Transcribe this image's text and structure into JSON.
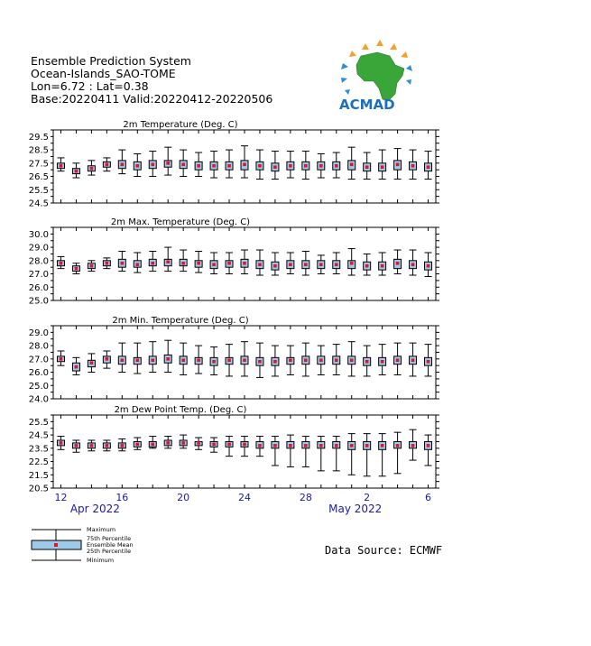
{
  "header": {
    "line1": "Ensemble Prediction System",
    "line2": "Ocean-Islands_SAO-TOME",
    "line3": "Lon=6.72 : Lat=0.38",
    "line4": "Base:20220411 Valid:20220412-20220506"
  },
  "logo": {
    "text": "ACMAD"
  },
  "source": "Data Source: ECMWF",
  "legend": {
    "maximum": "Maximum",
    "p75": "75th Percentile",
    "mean": "Ensemble Mean",
    "p25": "25th Percentile",
    "minimum": "Minimum"
  },
  "colors": {
    "box_fill": "#9ec9e8",
    "mean_marker": "#e8102a",
    "axis_text": "#1a1aa8"
  },
  "chart_data": [
    {
      "type": "box",
      "title": "2m Temperature (Deg. C)",
      "x": [
        "2022-04-12",
        "2022-04-13",
        "2022-04-14",
        "2022-04-15",
        "2022-04-16",
        "2022-04-17",
        "2022-04-18",
        "2022-04-19",
        "2022-04-20",
        "2022-04-21",
        "2022-04-22",
        "2022-04-23",
        "2022-04-24",
        "2022-04-25",
        "2022-04-26",
        "2022-04-27",
        "2022-04-28",
        "2022-04-29",
        "2022-04-30",
        "2022-05-01",
        "2022-05-02",
        "2022-05-03",
        "2022-05-04",
        "2022-05-05",
        "2022-05-06"
      ],
      "ylim": [
        24.5,
        30.0
      ],
      "yticks": [
        "29.5",
        "28.5",
        "27.5",
        "26.5",
        "25.5",
        "24.5"
      ],
      "min": [
        26.9,
        26.4,
        26.6,
        26.9,
        26.7,
        26.5,
        26.5,
        26.6,
        26.5,
        26.5,
        26.4,
        26.4,
        26.4,
        26.3,
        26.3,
        26.4,
        26.3,
        26.4,
        26.4,
        26.3,
        26.3,
        26.3,
        26.3,
        26.3,
        26.3
      ],
      "p25": [
        27.1,
        26.7,
        26.9,
        27.2,
        27.1,
        27.0,
        27.1,
        27.2,
        27.1,
        27.0,
        27.0,
        27.0,
        27.0,
        27.0,
        26.9,
        27.0,
        27.0,
        27.0,
        27.0,
        27.0,
        26.9,
        26.9,
        27.0,
        27.0,
        26.9
      ],
      "mean": [
        27.3,
        26.9,
        27.1,
        27.4,
        27.4,
        27.3,
        27.4,
        27.5,
        27.4,
        27.3,
        27.3,
        27.3,
        27.4,
        27.3,
        27.2,
        27.3,
        27.3,
        27.3,
        27.3,
        27.4,
        27.2,
        27.2,
        27.4,
        27.3,
        27.2
      ],
      "p75": [
        27.5,
        27.1,
        27.3,
        27.6,
        27.7,
        27.6,
        27.7,
        27.7,
        27.7,
        27.6,
        27.6,
        27.6,
        27.7,
        27.6,
        27.5,
        27.6,
        27.6,
        27.6,
        27.6,
        27.7,
        27.5,
        27.5,
        27.7,
        27.6,
        27.5
      ],
      "max": [
        27.9,
        27.5,
        27.7,
        27.9,
        28.5,
        28.2,
        28.4,
        28.7,
        28.5,
        28.3,
        28.4,
        28.5,
        28.8,
        28.5,
        28.4,
        28.4,
        28.4,
        28.2,
        28.3,
        28.7,
        28.3,
        28.5,
        28.6,
        28.5,
        28.4
      ]
    },
    {
      "type": "box",
      "title": "2m Max. Temperature (Deg. C)",
      "x": [
        "2022-04-12",
        "2022-04-13",
        "2022-04-14",
        "2022-04-15",
        "2022-04-16",
        "2022-04-17",
        "2022-04-18",
        "2022-04-19",
        "2022-04-20",
        "2022-04-21",
        "2022-04-22",
        "2022-04-23",
        "2022-04-24",
        "2022-04-25",
        "2022-04-26",
        "2022-04-27",
        "2022-04-28",
        "2022-04-29",
        "2022-04-30",
        "2022-05-01",
        "2022-05-02",
        "2022-05-03",
        "2022-05-04",
        "2022-05-05",
        "2022-05-06"
      ],
      "ylim": [
        25.0,
        30.5
      ],
      "yticks": [
        "30.0",
        "29.0",
        "28.0",
        "27.0",
        "26.0",
        "25.0"
      ],
      "min": [
        27.4,
        27.0,
        27.2,
        27.4,
        27.2,
        27.1,
        27.2,
        27.2,
        27.2,
        27.1,
        27.0,
        27.0,
        27.0,
        26.9,
        26.9,
        27.0,
        26.9,
        27.0,
        27.0,
        26.9,
        26.9,
        26.9,
        27.0,
        26.9,
        26.8
      ],
      "p25": [
        27.6,
        27.2,
        27.4,
        27.6,
        27.5,
        27.5,
        27.6,
        27.6,
        27.6,
        27.5,
        27.4,
        27.5,
        27.5,
        27.4,
        27.3,
        27.4,
        27.4,
        27.4,
        27.4,
        27.4,
        27.3,
        27.3,
        27.4,
        27.4,
        27.3
      ],
      "mean": [
        27.8,
        27.4,
        27.6,
        27.8,
        27.8,
        27.7,
        27.8,
        27.9,
        27.8,
        27.8,
        27.7,
        27.8,
        27.8,
        27.7,
        27.6,
        27.7,
        27.7,
        27.7,
        27.7,
        27.8,
        27.6,
        27.6,
        27.8,
        27.7,
        27.6
      ],
      "p75": [
        28.0,
        27.6,
        27.8,
        28.0,
        28.1,
        28.0,
        28.1,
        28.1,
        28.1,
        28.0,
        28.0,
        28.0,
        28.1,
        28.0,
        27.9,
        28.0,
        28.0,
        28.0,
        28.0,
        28.0,
        27.9,
        27.9,
        28.1,
        28.0,
        27.9
      ],
      "max": [
        28.3,
        27.8,
        28.0,
        28.2,
        28.7,
        28.6,
        28.7,
        29.0,
        28.8,
        28.7,
        28.6,
        28.6,
        28.8,
        28.8,
        28.6,
        28.6,
        28.7,
        28.4,
        28.6,
        28.9,
        28.5,
        28.6,
        28.8,
        28.8,
        28.6
      ]
    },
    {
      "type": "box",
      "title": "2m Min. Temperature (Deg. C)",
      "x": [
        "2022-04-12",
        "2022-04-13",
        "2022-04-14",
        "2022-04-15",
        "2022-04-16",
        "2022-04-17",
        "2022-04-18",
        "2022-04-19",
        "2022-04-20",
        "2022-04-21",
        "2022-04-22",
        "2022-04-23",
        "2022-04-24",
        "2022-04-25",
        "2022-04-26",
        "2022-04-27",
        "2022-04-28",
        "2022-04-29",
        "2022-04-30",
        "2022-05-01",
        "2022-05-02",
        "2022-05-03",
        "2022-05-04",
        "2022-05-05",
        "2022-05-06"
      ],
      "ylim": [
        24.0,
        29.5
      ],
      "yticks": [
        "29.0",
        "28.0",
        "27.0",
        "26.0",
        "25.0",
        "24.0"
      ],
      "min": [
        26.5,
        25.8,
        26.0,
        26.3,
        26.0,
        25.9,
        26.0,
        26.0,
        25.8,
        25.9,
        25.8,
        25.7,
        25.7,
        25.6,
        25.7,
        25.8,
        25.7,
        25.8,
        25.8,
        25.7,
        25.7,
        25.8,
        25.8,
        25.7,
        25.7
      ],
      "p25": [
        26.8,
        26.1,
        26.4,
        26.7,
        26.6,
        26.6,
        26.6,
        26.7,
        26.6,
        26.6,
        26.5,
        26.6,
        26.6,
        26.5,
        26.5,
        26.6,
        26.6,
        26.6,
        26.6,
        26.6,
        26.5,
        26.5,
        26.6,
        26.6,
        26.5
      ],
      "mean": [
        27.0,
        26.4,
        26.7,
        27.0,
        26.9,
        26.9,
        26.9,
        27.0,
        26.9,
        26.9,
        26.8,
        26.9,
        26.9,
        26.8,
        26.8,
        26.9,
        26.9,
        26.9,
        26.9,
        26.9,
        26.8,
        26.8,
        26.9,
        26.9,
        26.8
      ],
      "p75": [
        27.2,
        26.7,
        26.9,
        27.2,
        27.2,
        27.1,
        27.2,
        27.3,
        27.2,
        27.1,
        27.1,
        27.1,
        27.2,
        27.1,
        27.1,
        27.1,
        27.2,
        27.2,
        27.2,
        27.2,
        27.1,
        27.1,
        27.2,
        27.2,
        27.1
      ],
      "max": [
        27.6,
        27.1,
        27.4,
        27.6,
        28.2,
        28.2,
        28.3,
        28.4,
        28.2,
        28.0,
        27.9,
        28.1,
        28.3,
        28.2,
        28.0,
        28.0,
        28.2,
        28.0,
        28.1,
        28.3,
        28.0,
        28.1,
        28.2,
        28.2,
        28.1
      ]
    },
    {
      "type": "box",
      "title": "2m Dew Point Temp. (Deg. C)",
      "x": [
        "2022-04-12",
        "2022-04-13",
        "2022-04-14",
        "2022-04-15",
        "2022-04-16",
        "2022-04-17",
        "2022-04-18",
        "2022-04-19",
        "2022-04-20",
        "2022-04-21",
        "2022-04-22",
        "2022-04-23",
        "2022-04-24",
        "2022-04-25",
        "2022-04-26",
        "2022-04-27",
        "2022-04-28",
        "2022-04-29",
        "2022-04-30",
        "2022-05-01",
        "2022-05-02",
        "2022-05-03",
        "2022-05-04",
        "2022-05-05",
        "2022-05-06"
      ],
      "ylim": [
        20.5,
        26.0
      ],
      "yticks": [
        "25.5",
        "24.5",
        "23.5",
        "22.5",
        "21.5",
        "20.5"
      ],
      "min": [
        23.4,
        23.2,
        23.3,
        23.3,
        23.3,
        23.4,
        23.5,
        23.5,
        23.5,
        23.4,
        23.2,
        22.9,
        22.9,
        22.9,
        22.2,
        22.1,
        22.1,
        21.8,
        21.8,
        21.5,
        21.4,
        21.4,
        21.6,
        22.6,
        22.2
      ],
      "p25": [
        23.7,
        23.5,
        23.5,
        23.5,
        23.5,
        23.6,
        23.6,
        23.7,
        23.7,
        23.7,
        23.6,
        23.6,
        23.6,
        23.5,
        23.5,
        23.5,
        23.5,
        23.5,
        23.5,
        23.4,
        23.4,
        23.4,
        23.5,
        23.5,
        23.4
      ],
      "mean": [
        23.9,
        23.7,
        23.7,
        23.7,
        23.7,
        23.8,
        23.8,
        23.9,
        23.9,
        23.9,
        23.8,
        23.8,
        23.8,
        23.7,
        23.7,
        23.7,
        23.7,
        23.7,
        23.7,
        23.7,
        23.7,
        23.7,
        23.7,
        23.7,
        23.7
      ],
      "p75": [
        24.1,
        23.9,
        23.9,
        23.9,
        23.9,
        24.0,
        24.0,
        24.1,
        24.1,
        24.0,
        24.0,
        24.0,
        24.0,
        24.0,
        24.0,
        24.0,
        24.0,
        24.0,
        24.0,
        24.0,
        24.0,
        24.0,
        24.0,
        24.0,
        24.0
      ],
      "max": [
        24.4,
        24.1,
        24.1,
        24.1,
        24.2,
        24.3,
        24.4,
        24.4,
        24.5,
        24.3,
        24.3,
        24.4,
        24.4,
        24.4,
        24.4,
        24.5,
        24.4,
        24.4,
        24.4,
        24.6,
        24.6,
        24.6,
        24.7,
        24.9,
        24.5
      ]
    }
  ],
  "x_axis": {
    "day_labels": [
      "12",
      "16",
      "20",
      "24",
      "28",
      "2",
      "6"
    ],
    "day_label_index": [
      0,
      4,
      8,
      12,
      16,
      20,
      24
    ],
    "months": [
      {
        "label": "Apr 2022",
        "center_index": 2
      },
      {
        "label": "May 2022",
        "center_index": 19
      }
    ]
  }
}
